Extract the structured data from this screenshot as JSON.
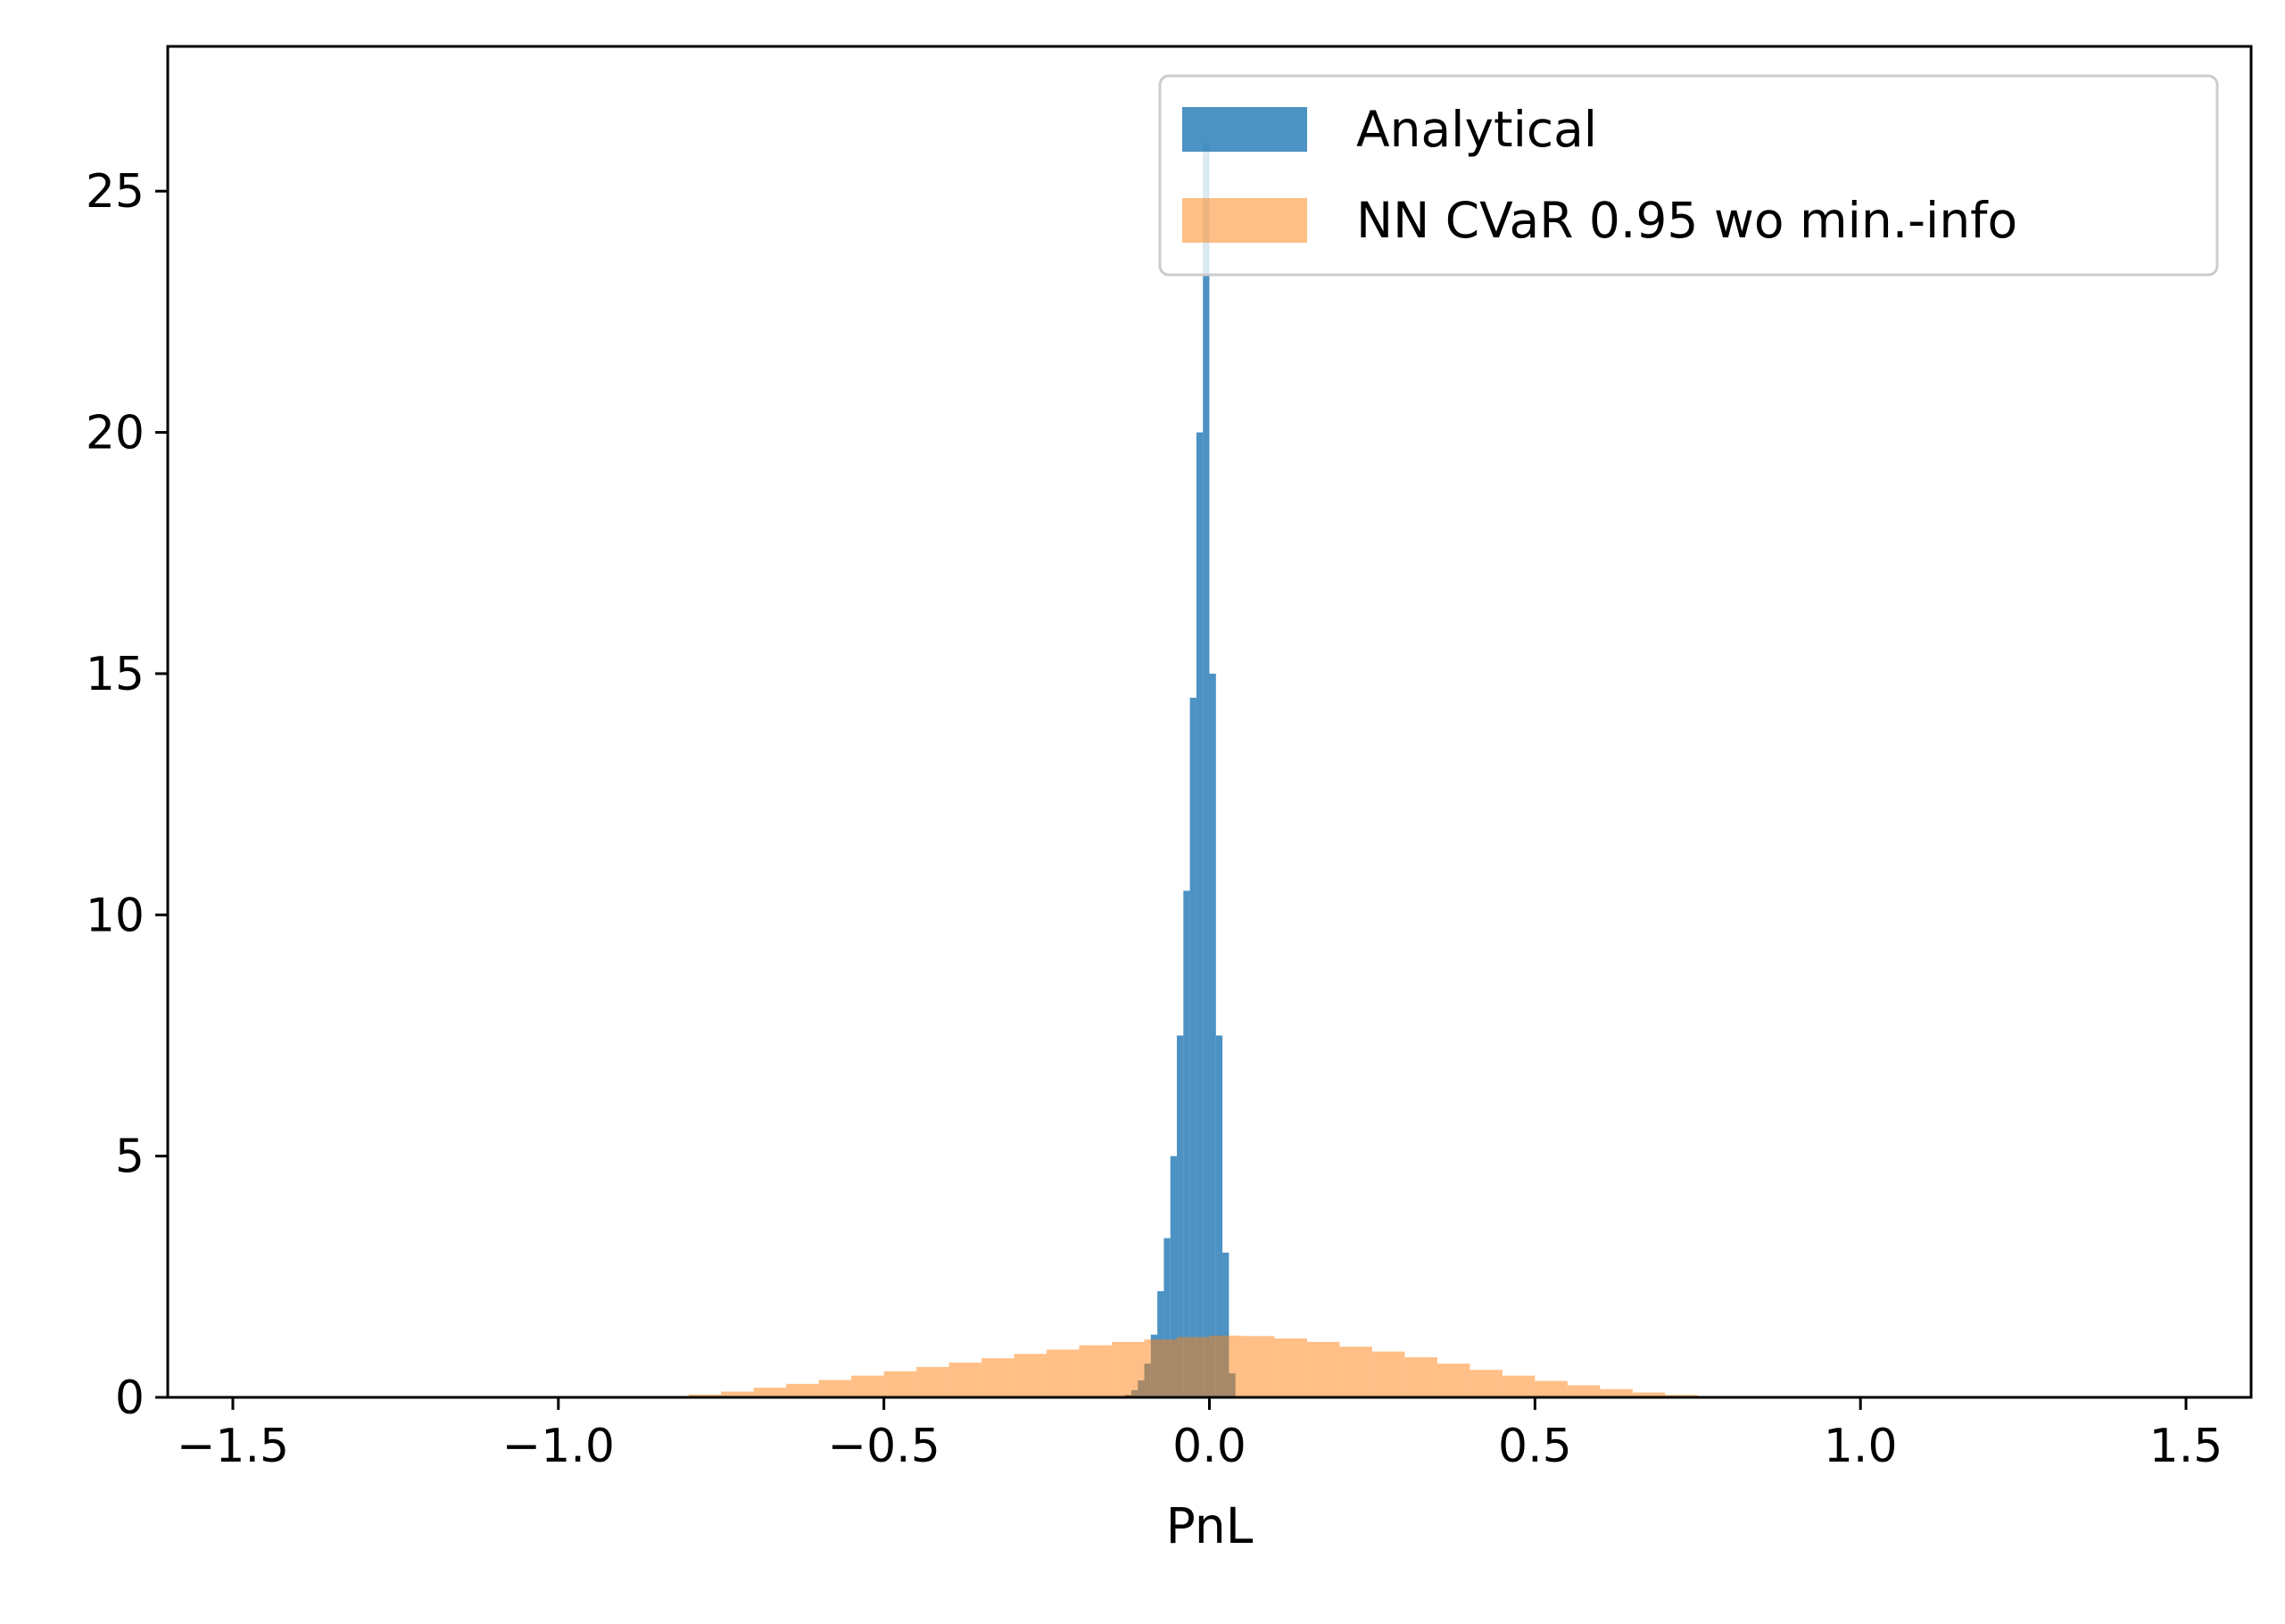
{
  "chart_data": {
    "type": "bar",
    "title": "",
    "xlabel": "PnL",
    "ylabel": "",
    "xlim": [
      -1.6,
      1.6
    ],
    "ylim": [
      0,
      28
    ],
    "xticks": [
      -1.5,
      -1.0,
      -0.5,
      0.0,
      0.5,
      1.0,
      1.5
    ],
    "xtick_labels": [
      "−1.5",
      "−1.0",
      "−0.5",
      "0.0",
      "0.5",
      "1.0",
      "1.5"
    ],
    "yticks": [
      0,
      5,
      10,
      15,
      20,
      25
    ],
    "ytick_labels": [
      "0",
      "5",
      "10",
      "15",
      "20",
      "25"
    ],
    "grid": false,
    "legend_position": "top-right",
    "series": [
      {
        "name": "Analytical",
        "color": "#1f77b4",
        "opacity": 0.8,
        "x": [
          -0.125,
          -0.115,
          -0.105,
          -0.095,
          -0.085,
          -0.075,
          -0.065,
          -0.055,
          -0.045,
          -0.035,
          -0.025,
          -0.015,
          -0.005,
          0.005,
          0.015,
          0.025,
          0.035
        ],
        "values": [
          0.05,
          0.15,
          0.35,
          0.7,
          1.3,
          2.2,
          3.3,
          5.0,
          7.5,
          10.5,
          14.5,
          20.0,
          26.0,
          15.0,
          7.5,
          3.0,
          0.5
        ],
        "bin_width": 0.01
      },
      {
        "name": "NN CVaR 0.95 wo min.-info",
        "color": "#ff7f0e",
        "opacity": 0.5,
        "x": [
          -0.825,
          -0.775,
          -0.725,
          -0.675,
          -0.625,
          -0.575,
          -0.525,
          -0.475,
          -0.425,
          -0.375,
          -0.325,
          -0.275,
          -0.225,
          -0.175,
          -0.125,
          -0.075,
          -0.025,
          0.025,
          0.075,
          0.125,
          0.175,
          0.225,
          0.275,
          0.325,
          0.375,
          0.425,
          0.475,
          0.525,
          0.575,
          0.625,
          0.675,
          0.725,
          0.775,
          0.825
        ],
        "values": [
          0.02,
          0.06,
          0.12,
          0.2,
          0.28,
          0.36,
          0.45,
          0.54,
          0.63,
          0.72,
          0.81,
          0.9,
          0.99,
          1.08,
          1.15,
          1.2,
          1.25,
          1.28,
          1.27,
          1.22,
          1.15,
          1.05,
          0.95,
          0.83,
          0.7,
          0.57,
          0.45,
          0.34,
          0.25,
          0.17,
          0.1,
          0.05,
          0.02,
          0.01
        ],
        "bin_width": 0.05
      }
    ]
  }
}
